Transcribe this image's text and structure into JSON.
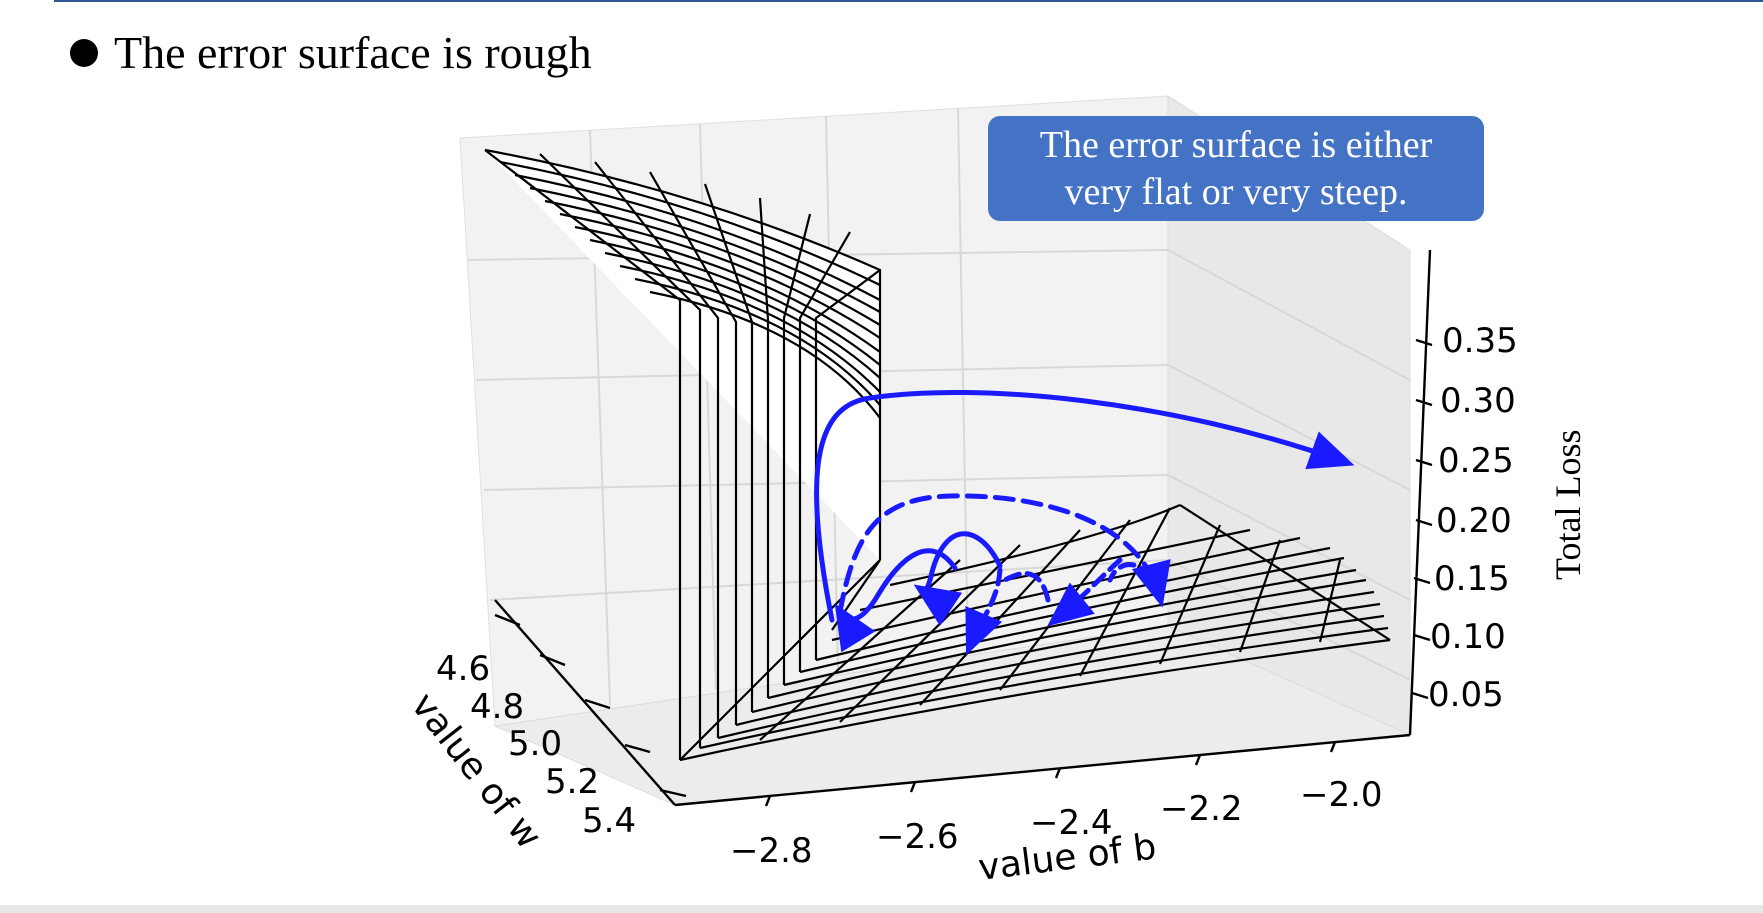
{
  "bullet": {
    "text": "The error surface is rough"
  },
  "callout": {
    "line1": "The error surface is either",
    "line2": "very flat or very steep."
  },
  "axes": {
    "w_label": "value of w",
    "b_label": "value of b",
    "z_label": "Total Loss",
    "w_ticks": [
      "4.6",
      "4.8",
      "5.0",
      "5.2",
      "5.4"
    ],
    "b_ticks": [
      "−2.8",
      "−2.6",
      "−2.4",
      "−2.2",
      "−2.0"
    ],
    "z_ticks": [
      "0.35",
      "0.30",
      "0.25",
      "0.20",
      "0.15",
      "0.10",
      "0.05"
    ]
  },
  "colors": {
    "accent": "#4472c4",
    "arrow": "#1a1aff",
    "rule": "#2f5597"
  }
}
